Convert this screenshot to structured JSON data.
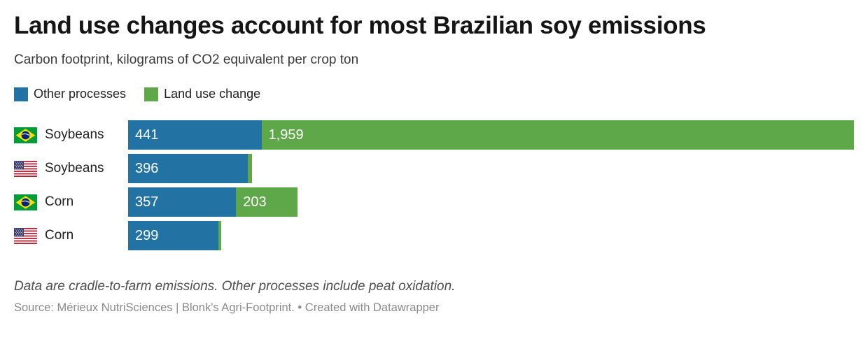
{
  "header": {
    "title": "Land use changes account for most Brazilian soy emissions",
    "subtitle": "Carbon footprint, kilograms of CO2 equivalent per crop ton"
  },
  "legend": {
    "items": [
      {
        "label": "Other processes",
        "color": "#2272a3"
      },
      {
        "label": "Land use change",
        "color": "#5fa84a"
      }
    ]
  },
  "colors": {
    "other_processes": "#2272a3",
    "land_use_change": "#5fa84a"
  },
  "chart_data": {
    "type": "bar",
    "orientation": "horizontal",
    "stacked": true,
    "title": "Land use changes account for most Brazilian soy emissions",
    "subtitle": "Carbon footprint, kilograms of CO2 equivalent per crop ton",
    "unit": "kg CO2 equivalent per crop ton",
    "series_names": [
      "Other processes",
      "Land use change"
    ],
    "xmax": 2400,
    "grid": false,
    "legend_position": "top",
    "rows": [
      {
        "country": "Brazil",
        "crop": "Soybeans",
        "flag": "brazil",
        "segments": [
          {
            "series": "Other processes",
            "value": 441,
            "label": "441"
          },
          {
            "series": "Land use change",
            "value": 1959,
            "label": "1,959"
          }
        ]
      },
      {
        "country": "United States",
        "crop": "Soybeans",
        "flag": "usa",
        "segments": [
          {
            "series": "Other processes",
            "value": 396,
            "label": "396"
          },
          {
            "series": "Land use change",
            "value": 14,
            "label": "",
            "estimated": true
          }
        ]
      },
      {
        "country": "Brazil",
        "crop": "Corn",
        "flag": "brazil",
        "segments": [
          {
            "series": "Other processes",
            "value": 357,
            "label": "357"
          },
          {
            "series": "Land use change",
            "value": 203,
            "label": "203"
          }
        ]
      },
      {
        "country": "United States",
        "crop": "Corn",
        "flag": "usa",
        "segments": [
          {
            "series": "Other processes",
            "value": 299,
            "label": "299"
          },
          {
            "series": "Land use change",
            "value": 9,
            "label": "",
            "estimated": true
          }
        ]
      }
    ]
  },
  "footer": {
    "note": "Data are cradle-to-farm emissions. Other processes include peat oxidation.",
    "source": "Source: Mérieux NutriSciences | Blonk's Agri-Footprint. • Created with Datawrapper"
  }
}
